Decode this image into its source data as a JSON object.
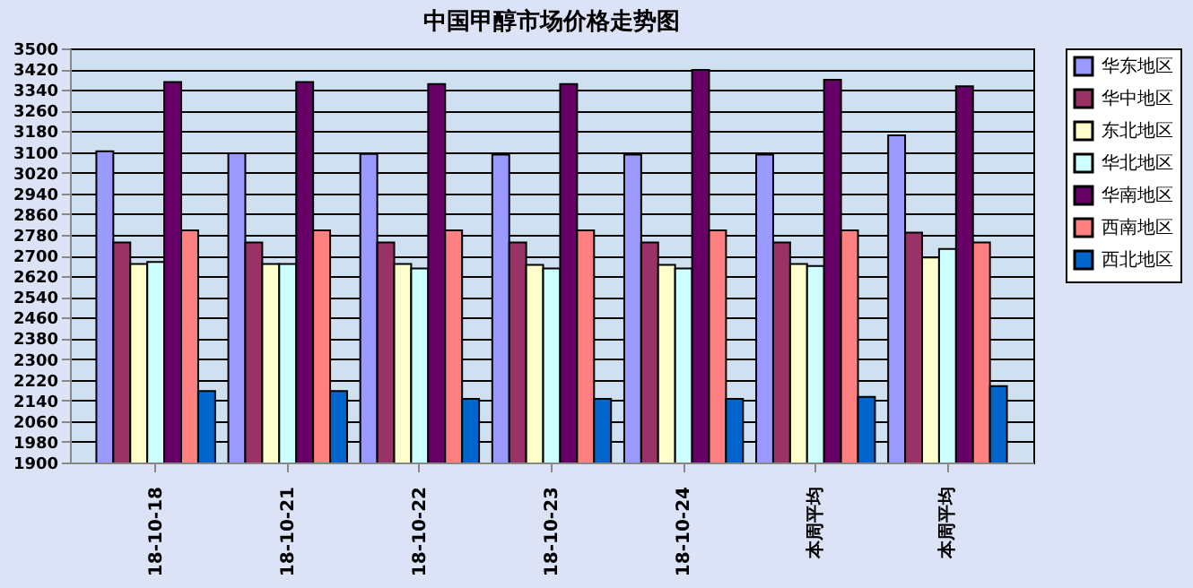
{
  "chart_data": {
    "type": "bar",
    "title": "中国甲醇市场价格走势图",
    "categories": [
      "18-10-18",
      "18-10-21",
      "18-10-22",
      "18-10-23",
      "18-10-24",
      "本周平均",
      "本周平均"
    ],
    "series": [
      {
        "name": "华东地区",
        "color": "#9999ff",
        "values": [
          3103,
          3095,
          3092,
          3090,
          3090,
          3090,
          3164
        ]
      },
      {
        "name": "华中地区",
        "color": "#993366",
        "values": [
          2750,
          2750,
          2750,
          2750,
          2750,
          2750,
          2788
        ]
      },
      {
        "name": "东北地区",
        "color": "#ffffcc",
        "values": [
          2667,
          2667,
          2667,
          2664,
          2664,
          2667,
          2692
        ]
      },
      {
        "name": "华北地区",
        "color": "#ccffff",
        "values": [
          2675,
          2667,
          2650,
          2650,
          2650,
          2659,
          2725
        ]
      },
      {
        "name": "华南地区",
        "color": "#660066",
        "values": [
          3370,
          3370,
          3362,
          3362,
          3417,
          3379,
          3354
        ]
      },
      {
        "name": "西南地区",
        "color": "#ff8080",
        "values": [
          2797,
          2797,
          2797,
          2797,
          2797,
          2797,
          2750
        ]
      },
      {
        "name": "西北地区",
        "color": "#0066cc",
        "values": [
          2176,
          2176,
          2146,
          2146,
          2146,
          2154,
          2195
        ]
      }
    ],
    "ylim": [
      1900,
      3500
    ],
    "yticks": [
      1900,
      1980,
      2060,
      2140,
      2220,
      2300,
      2380,
      2460,
      2540,
      2620,
      2700,
      2780,
      2860,
      2940,
      3020,
      3100,
      3180,
      3260,
      3340,
      3420,
      3500
    ],
    "grid": "y",
    "legend": "right"
  }
}
